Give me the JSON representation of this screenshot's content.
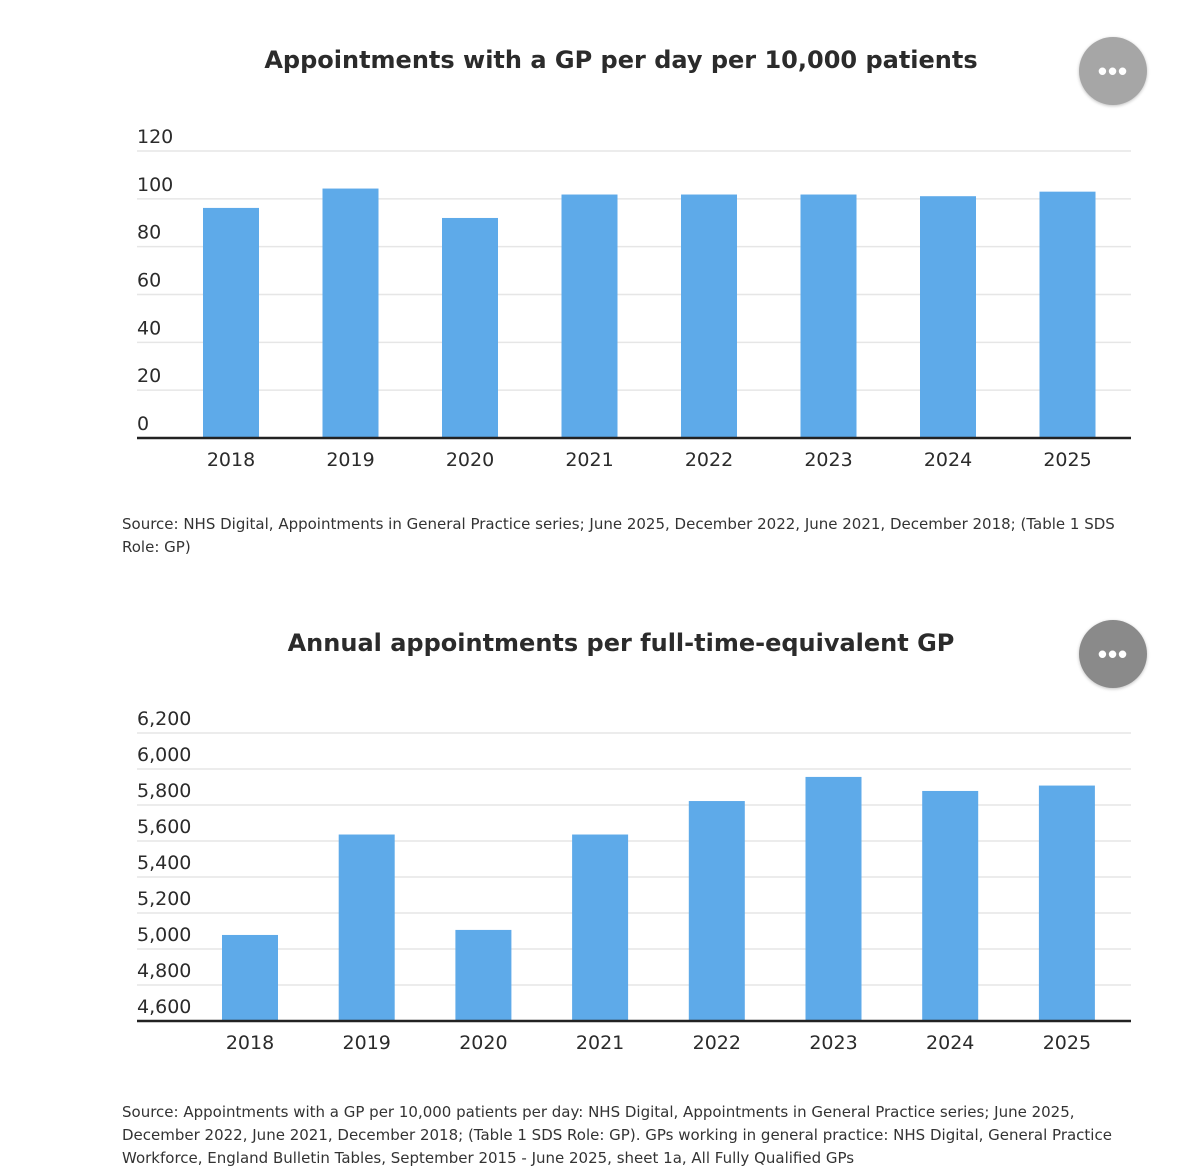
{
  "chart_data": [
    {
      "type": "bar",
      "title": "Appointments with a GP per day per 10,000 patients",
      "categories": [
        "2018",
        "2019",
        "2020",
        "2021",
        "2022",
        "2023",
        "2024",
        "2025"
      ],
      "values": [
        96.2,
        104.3,
        92.0,
        101.8,
        101.8,
        101.8,
        101.1,
        103.0
      ],
      "yticks": [
        "0",
        "20",
        "40",
        "60",
        "80",
        "100",
        "120"
      ],
      "ytick_values": [
        0,
        20,
        40,
        60,
        80,
        100,
        120
      ],
      "ylim": [
        0,
        120
      ],
      "xlabel": "",
      "ylabel": "",
      "grid": true,
      "color": "#5eaae9",
      "source": "Source: NHS Digital, Appointments in General Practice series; June 2025, December 2022, June 2021, December 2018; (Table 1 SDS Role: GP)"
    },
    {
      "type": "bar",
      "title": "Annual appointments per full-time-equivalent GP",
      "categories": [
        "2018",
        "2019",
        "2020",
        "2021",
        "2022",
        "2023",
        "2024",
        "2025"
      ],
      "values": [
        5078,
        5636,
        5106,
        5636,
        5822,
        5956,
        5878,
        5908
      ],
      "yticks": [
        "4,600",
        "4,800",
        "5,000",
        "5,200",
        "5,400",
        "5,600",
        "5,800",
        "6,000",
        "6,200"
      ],
      "ytick_values": [
        4600,
        4800,
        5000,
        5200,
        5400,
        5600,
        5800,
        6000,
        6200
      ],
      "ylim": [
        4600,
        6200
      ],
      "xlabel": "",
      "ylabel": "",
      "grid": true,
      "color": "#5eaae9",
      "source": "Source: Appointments with a GP per 10,000 patients per day:  NHS Digital, Appointments in General Practice series; June 2025, December 2022, June 2021, December 2018; (Table 1 SDS Role: GP). GPs working in general practice: NHS Digital, General Practice Workforce, England Bulletin Tables, September 2015 - June 2025, sheet 1a, All Fully Qualified GPs"
    }
  ],
  "menu_icon": "more-horizontal-icon",
  "menu_label": "•••"
}
